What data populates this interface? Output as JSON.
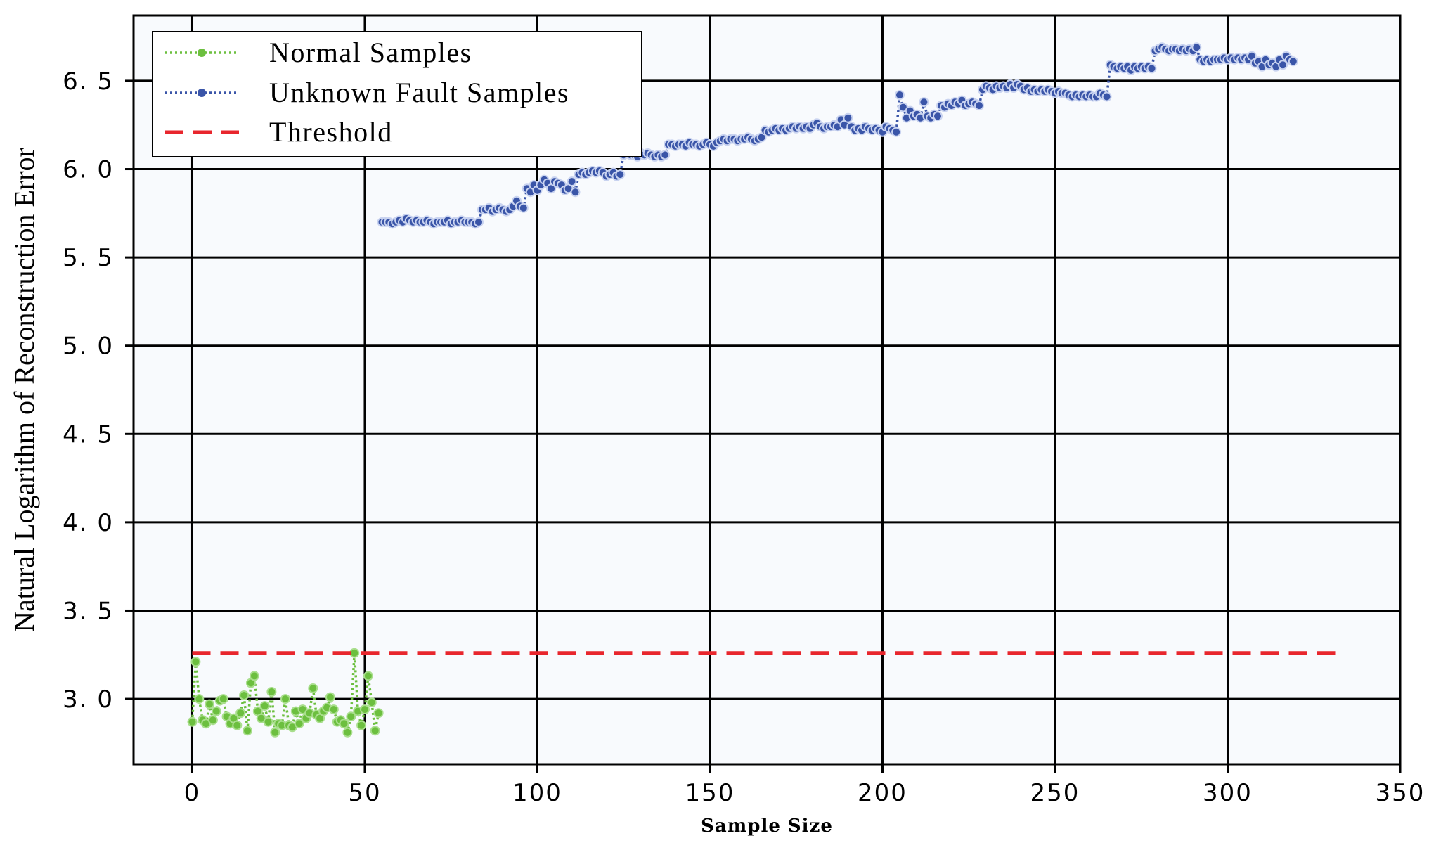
{
  "chart_data": {
    "type": "line",
    "xlabel": "Sample Size",
    "ylabel": "Natural Logarithm of Reconstruction Error",
    "xlim": [
      -17,
      350
    ],
    "ylim": [
      2.63,
      6.87
    ],
    "xticks": [
      0,
      50,
      100,
      150,
      200,
      250,
      300,
      350
    ],
    "xtick_labels": [
      "0",
      "50",
      "100",
      "150",
      "200",
      "250",
      "300",
      "350"
    ],
    "yticks": [
      3.0,
      3.5,
      4.0,
      4.5,
      5.0,
      5.5,
      6.0,
      6.5
    ],
    "ytick_labels": [
      "3. 0",
      "3. 5",
      "4. 0",
      "4. 5",
      "5. 0",
      "5. 5",
      "6. 0",
      "6. 5"
    ],
    "grid": true,
    "legend_position": "top-left",
    "colors": {
      "normal": "#6cbf3f",
      "fault": "#3a55a8",
      "threshold": "#e8262d",
      "plot_bg": "#f8fafd"
    },
    "series": [
      {
        "name": "Normal Samples",
        "style": "dotted-circle",
        "x_start": 0,
        "values": [
          2.87,
          3.21,
          3.0,
          2.88,
          2.86,
          2.97,
          2.88,
          2.93,
          2.99,
          3.0,
          2.9,
          2.86,
          2.89,
          2.85,
          2.92,
          3.02,
          2.82,
          3.09,
          3.13,
          2.93,
          2.89,
          2.96,
          2.87,
          3.04,
          2.81,
          2.86,
          2.85,
          3.0,
          2.85,
          2.84,
          2.93,
          2.86,
          2.94,
          2.89,
          2.92,
          3.06,
          2.91,
          2.89,
          2.93,
          2.95,
          3.01,
          2.94,
          2.87,
          2.88,
          2.86,
          2.81,
          2.9,
          3.26,
          2.93,
          2.85,
          2.94,
          3.13,
          2.98,
          2.82,
          2.92
        ]
      },
      {
        "name": "Unknown Fault Samples",
        "style": "dotted-circle",
        "x_start": 55,
        "values": [
          5.7,
          5.7,
          5.7,
          5.69,
          5.7,
          5.71,
          5.7,
          5.72,
          5.71,
          5.7,
          5.71,
          5.7,
          5.7,
          5.71,
          5.7,
          5.69,
          5.7,
          5.7,
          5.7,
          5.71,
          5.69,
          5.7,
          5.7,
          5.71,
          5.7,
          5.7,
          5.7,
          5.69,
          5.7,
          5.77,
          5.77,
          5.78,
          5.76,
          5.77,
          5.78,
          5.77,
          5.76,
          5.77,
          5.79,
          5.82,
          5.79,
          5.78,
          5.89,
          5.87,
          5.91,
          5.88,
          5.91,
          5.94,
          5.92,
          5.89,
          5.93,
          5.92,
          5.91,
          5.88,
          5.89,
          5.93,
          5.87,
          5.97,
          5.98,
          5.97,
          5.98,
          5.99,
          5.98,
          5.99,
          5.98,
          5.96,
          5.97,
          5.98,
          5.96,
          5.97,
          6.08,
          6.09,
          6.08,
          6.08,
          6.07,
          6.09,
          6.08,
          6.09,
          6.08,
          6.07,
          6.08,
          6.07,
          6.08,
          6.14,
          6.14,
          6.13,
          6.14,
          6.14,
          6.13,
          6.15,
          6.14,
          6.14,
          6.13,
          6.14,
          6.15,
          6.14,
          6.13,
          6.15,
          6.16,
          6.17,
          6.16,
          6.17,
          6.17,
          6.16,
          6.17,
          6.17,
          6.18,
          6.17,
          6.16,
          6.17,
          6.18,
          6.22,
          6.21,
          6.22,
          6.23,
          6.22,
          6.23,
          6.22,
          6.23,
          6.24,
          6.23,
          6.24,
          6.23,
          6.24,
          6.23,
          6.25,
          6.26,
          6.24,
          6.23,
          6.24,
          6.24,
          6.25,
          6.24,
          6.28,
          6.25,
          6.29,
          6.24,
          6.22,
          6.23,
          6.22,
          6.24,
          6.23,
          6.22,
          6.23,
          6.22,
          6.21,
          6.24,
          6.23,
          6.22,
          6.21,
          6.42,
          6.35,
          6.29,
          6.33,
          6.3,
          6.31,
          6.29,
          6.38,
          6.3,
          6.29,
          6.31,
          6.3,
          6.36,
          6.35,
          6.37,
          6.36,
          6.38,
          6.37,
          6.39,
          6.36,
          6.37,
          6.38,
          6.37,
          6.36,
          6.45,
          6.47,
          6.46,
          6.45,
          6.47,
          6.46,
          6.47,
          6.46,
          6.48,
          6.46,
          6.48,
          6.47,
          6.45,
          6.46,
          6.44,
          6.45,
          6.44,
          6.45,
          6.44,
          6.45,
          6.44,
          6.43,
          6.44,
          6.43,
          6.43,
          6.42,
          6.41,
          6.42,
          6.41,
          6.42,
          6.41,
          6.42,
          6.41,
          6.41,
          6.43,
          6.42,
          6.41,
          6.59,
          6.58,
          6.57,
          6.58,
          6.57,
          6.58,
          6.56,
          6.58,
          6.57,
          6.58,
          6.57,
          6.58,
          6.57,
          6.67,
          6.68,
          6.69,
          6.68,
          6.67,
          6.68,
          6.68,
          6.67,
          6.68,
          6.67,
          6.68,
          6.67,
          6.69,
          6.62,
          6.61,
          6.62,
          6.61,
          6.62,
          6.62,
          6.62,
          6.63,
          6.62,
          6.63,
          6.62,
          6.63,
          6.62,
          6.63,
          6.62,
          6.64,
          6.6,
          6.61,
          6.58,
          6.62,
          6.59,
          6.6,
          6.58,
          6.62,
          6.59,
          6.64,
          6.62,
          6.61
        ]
      },
      {
        "name": "Threshold",
        "style": "dashed",
        "x": [
          0,
          334
        ],
        "values": [
          3.26,
          3.26
        ]
      }
    ]
  }
}
